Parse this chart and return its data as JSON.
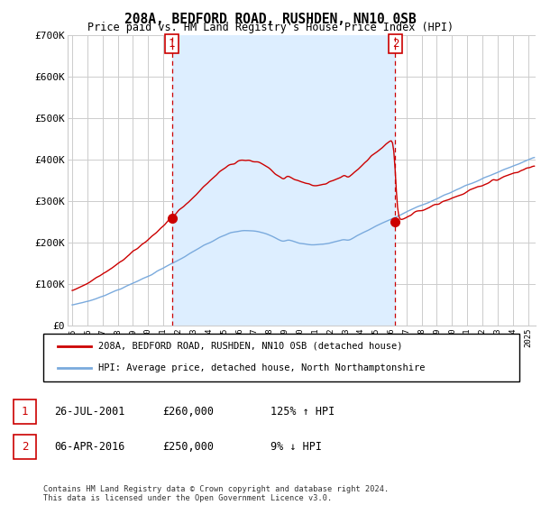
{
  "title": "208A, BEDFORD ROAD, RUSHDEN, NN10 0SB",
  "subtitle": "Price paid vs. HM Land Registry's House Price Index (HPI)",
  "legend_line1": "208A, BEDFORD ROAD, RUSHDEN, NN10 0SB (detached house)",
  "legend_line2": "HPI: Average price, detached house, North Northamptonshire",
  "footnote": "Contains HM Land Registry data © Crown copyright and database right 2024.\nThis data is licensed under the Open Government Licence v3.0.",
  "table": [
    {
      "num": "1",
      "date": "26-JUL-2001",
      "price": "£260,000",
      "hpi": "125% ↑ HPI"
    },
    {
      "num": "2",
      "date": "06-APR-2016",
      "price": "£250,000",
      "hpi": "9% ↓ HPI"
    }
  ],
  "sale1_year": 2001.57,
  "sale1_price": 260000,
  "sale2_year": 2016.27,
  "sale2_price": 250000,
  "red_color": "#cc0000",
  "blue_color": "#7aaadd",
  "shade_color": "#ddeeff",
  "vline_color": "#cc0000",
  "grid_color": "#cccccc",
  "ylim": [
    0,
    700000
  ],
  "yticks": [
    0,
    100000,
    200000,
    300000,
    400000,
    500000,
    600000,
    700000
  ],
  "ytick_labels": [
    "£0",
    "£100K",
    "£200K",
    "£300K",
    "£400K",
    "£500K",
    "£600K",
    "£700K"
  ],
  "xlim_start": 1994.7,
  "xlim_end": 2025.5
}
